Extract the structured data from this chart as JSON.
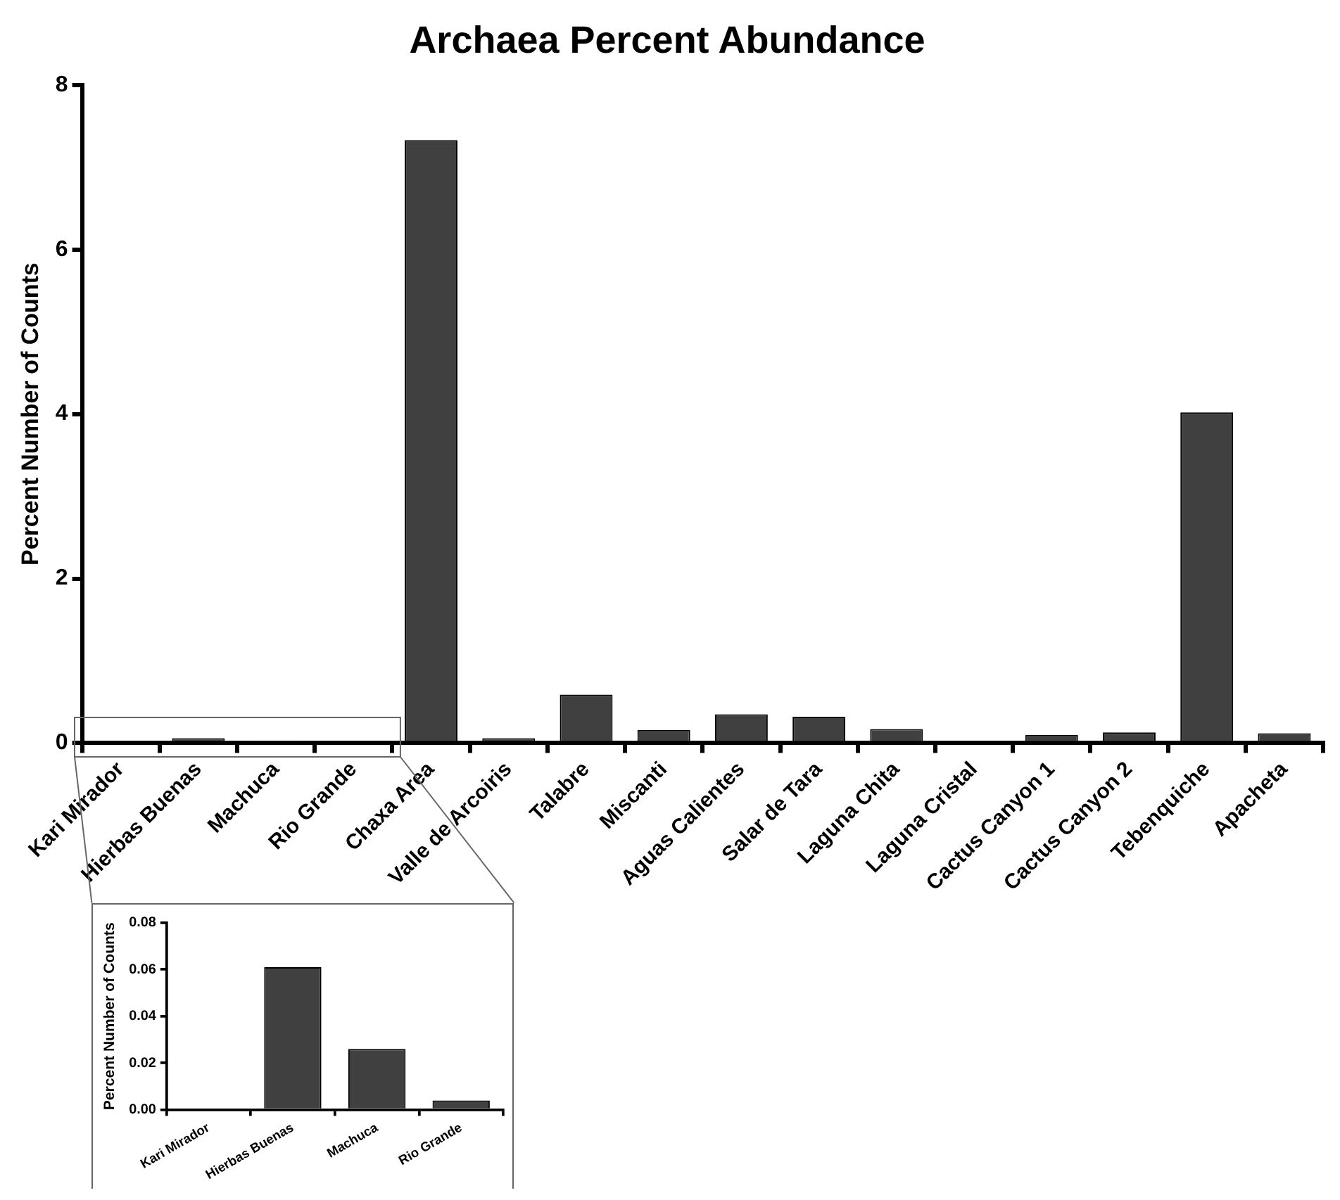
{
  "chart_data": [
    {
      "type": "bar",
      "title": "Archaea Percent Abundance",
      "ylabel": "Percent Number of Counts",
      "categories": [
        "Kari Mirador",
        "Hierbas Buenas",
        "Machuca",
        "Rio Grande",
        "Chaxa Area",
        "Valle de Arcoiris",
        "Talabre",
        "Miscanti",
        "Aguas Calientes",
        "Salar de Tara",
        "Laguna Chita",
        "Laguna Cristal",
        "Cactus Canyon 1",
        "Cactus Canyon 2",
        "Tebenquiche",
        "Apacheta"
      ],
      "values": [
        0,
        0.06,
        0.03,
        0,
        7.33,
        0.06,
        0.59,
        0.16,
        0.35,
        0.32,
        0.17,
        0,
        0.1,
        0.13,
        4.02,
        0.12
      ],
      "color": "#404040",
      "ylim": [
        0,
        8
      ],
      "yticks": [
        0,
        2,
        4,
        6,
        8
      ],
      "grid": false
    },
    {
      "type": "bar",
      "ylabel": "Percent Number of Counts",
      "categories": [
        "Kari Mirador",
        "Hierbas Buenas",
        "Machuca",
        "Rio Grande"
      ],
      "values": [
        0,
        0.061,
        0.026,
        0.004
      ],
      "color": "#404040",
      "ylim": [
        0,
        0.08
      ],
      "yticks": [
        {
          "value": 0,
          "label": "0.00"
        },
        {
          "value": 0.02,
          "label": "0.02"
        },
        {
          "value": 0.04,
          "label": "0.04"
        },
        {
          "value": 0.06,
          "label": "0.06"
        },
        {
          "value": 0.08,
          "label": "0.08"
        }
      ],
      "grid": false
    }
  ]
}
